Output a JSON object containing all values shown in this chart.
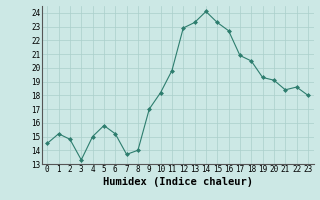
{
  "x": [
    0,
    1,
    2,
    3,
    4,
    5,
    6,
    7,
    8,
    9,
    10,
    11,
    12,
    13,
    14,
    15,
    16,
    17,
    18,
    19,
    20,
    21,
    22,
    23
  ],
  "y": [
    14.5,
    15.2,
    14.8,
    13.3,
    15.0,
    15.8,
    15.2,
    13.7,
    14.0,
    17.0,
    18.2,
    19.8,
    22.9,
    23.3,
    24.1,
    23.3,
    22.7,
    20.9,
    20.5,
    19.3,
    19.1,
    18.4,
    18.6,
    18.0
  ],
  "line_color": "#2d7d6e",
  "marker": "D",
  "marker_size": 2,
  "bg_color": "#cce8e5",
  "grid_color": "#aacfcb",
  "xlabel": "Humidex (Indice chaleur)",
  "ylim": [
    13,
    24.5
  ],
  "xlim": [
    -0.5,
    23.5
  ],
  "yticks": [
    13,
    14,
    15,
    16,
    17,
    18,
    19,
    20,
    21,
    22,
    23,
    24
  ],
  "xticks": [
    0,
    1,
    2,
    3,
    4,
    5,
    6,
    7,
    8,
    9,
    10,
    11,
    12,
    13,
    14,
    15,
    16,
    17,
    18,
    19,
    20,
    21,
    22,
    23
  ],
  "tick_fontsize": 5.5,
  "xlabel_fontsize": 7.5
}
